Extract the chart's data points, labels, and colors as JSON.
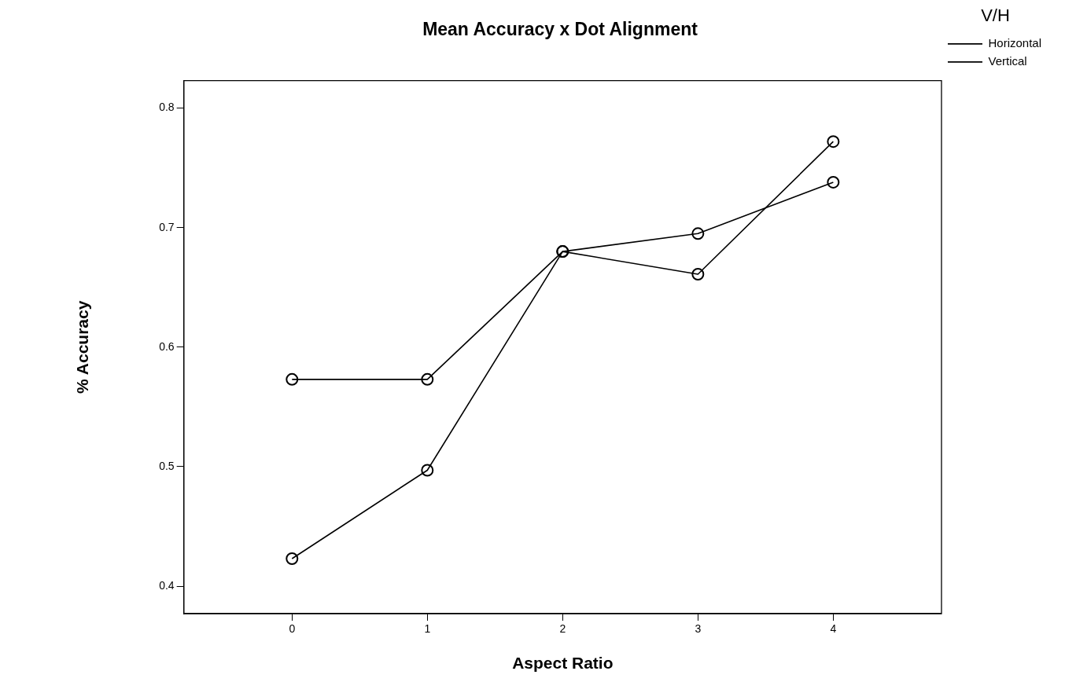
{
  "chart_data": {
    "type": "line",
    "title": "Mean Accuracy x Dot Alignment",
    "xlabel": "Aspect Ratio",
    "ylabel": "% Accuracy",
    "legend_title": "V/H",
    "x": [
      0,
      1,
      2,
      3,
      4
    ],
    "series": [
      {
        "name": "Horizontal",
        "color": "#000000",
        "values": [
          0.573,
          0.573,
          0.68,
          0.695,
          0.738
        ]
      },
      {
        "name": "Vertical",
        "color": "#000000",
        "values": [
          0.423,
          0.497,
          0.68,
          0.661,
          0.772
        ]
      }
    ],
    "xlim": [
      -0.8,
      4.8
    ],
    "xticks": [
      0,
      1,
      2,
      3,
      4
    ],
    "ylim": [
      0.377,
      0.823
    ],
    "yticks": [
      0.4,
      0.5,
      0.6,
      0.7,
      0.8
    ],
    "grid": false,
    "legend": "top right",
    "marker": "circle",
    "line_style": "solid"
  }
}
